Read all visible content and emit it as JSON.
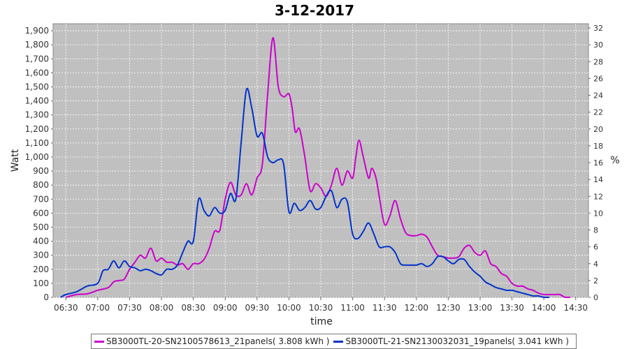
{
  "chart_data": {
    "type": "line",
    "title": "3-12-2017",
    "xlabel": "time",
    "ylabel": "Watt",
    "y2label": "%",
    "ylim": [
      0,
      1950
    ],
    "y2lim": [
      0,
      32.5
    ],
    "xlim": [
      "06:18",
      "14:42"
    ],
    "grid": true,
    "legend_position": "bottom",
    "y_ticks": [
      0,
      100,
      200,
      300,
      400,
      500,
      600,
      700,
      800,
      900,
      1000,
      1100,
      1200,
      1300,
      1400,
      1500,
      1600,
      1700,
      1800,
      1900
    ],
    "y_tick_labels": [
      "0",
      "100",
      "200",
      "300",
      "400",
      "500",
      "600",
      "700",
      "800",
      "900",
      "1,000",
      "1,100",
      "1,200",
      "1,300",
      "1,400",
      "1,500",
      "1,600",
      "1,700",
      "1,800",
      "1,900"
    ],
    "y2_ticks": [
      0,
      2,
      4,
      6,
      8,
      10,
      12,
      14,
      16,
      18,
      20,
      22,
      24,
      26,
      28,
      30,
      32
    ],
    "x_tick_labels": [
      "06:30",
      "07:00",
      "07:30",
      "08:00",
      "08:30",
      "09:00",
      "09:30",
      "10:00",
      "10:30",
      "11:00",
      "11:30",
      "12:00",
      "12:30",
      "13:00",
      "13:30",
      "14:00",
      "14:30"
    ],
    "colors": {
      "plot_bg": "#c0c0c0",
      "grid": "#ffffff"
    },
    "series": [
      {
        "name": "SB3000TL-20-SN2100578613_21panels( 3.808 kWh )",
        "color": "#cc00cc",
        "x": [
          "06:30",
          "06:40",
          "06:50",
          "07:00",
          "07:10",
          "07:15",
          "07:20",
          "07:25",
          "07:30",
          "07:35",
          "07:40",
          "07:45",
          "07:50",
          "07:55",
          "08:00",
          "08:05",
          "08:10",
          "08:15",
          "08:20",
          "08:25",
          "08:30",
          "08:35",
          "08:40",
          "08:45",
          "08:50",
          "08:55",
          "09:00",
          "09:05",
          "09:10",
          "09:15",
          "09:20",
          "09:25",
          "09:30",
          "09:35",
          "09:40",
          "09:45",
          "09:50",
          "09:55",
          "10:00",
          "10:03",
          "10:06",
          "10:10",
          "10:15",
          "10:20",
          "10:25",
          "10:30",
          "10:35",
          "10:40",
          "10:45",
          "10:50",
          "10:55",
          "11:00",
          "11:03",
          "11:06",
          "11:10",
          "11:15",
          "11:18",
          "11:22",
          "11:25",
          "11:30",
          "11:35",
          "11:40",
          "11:45",
          "11:50",
          "11:55",
          "12:00",
          "12:05",
          "12:10",
          "12:15",
          "12:20",
          "12:25",
          "12:30",
          "12:35",
          "12:40",
          "12:45",
          "12:50",
          "12:55",
          "13:00",
          "13:05",
          "13:10",
          "13:15",
          "13:20",
          "13:25",
          "13:30",
          "13:35",
          "13:40",
          "13:45",
          "13:50",
          "13:55",
          "14:00",
          "14:05",
          "14:10",
          "14:15",
          "14:20",
          "14:25",
          "14:30",
          "14:35"
        ],
        "values": [
          0,
          20,
          25,
          50,
          70,
          110,
          120,
          130,
          200,
          250,
          300,
          280,
          350,
          260,
          280,
          250,
          250,
          230,
          240,
          200,
          240,
          240,
          270,
          350,
          470,
          480,
          700,
          820,
          730,
          730,
          810,
          730,
          850,
          950,
          1450,
          1850,
          1500,
          1430,
          1450,
          1350,
          1180,
          1200,
          1000,
          760,
          810,
          780,
          720,
          800,
          920,
          800,
          900,
          850,
          1000,
          1120,
          1000,
          850,
          920,
          850,
          720,
          520,
          580,
          690,
          560,
          460,
          440,
          440,
          450,
          430,
          360,
          300,
          290,
          280,
          280,
          290,
          350,
          370,
          320,
          300,
          330,
          240,
          220,
          170,
          150,
          100,
          80,
          80,
          60,
          50,
          30,
          20,
          20,
          20,
          20,
          0,
          0,
          null,
          null
        ]
      },
      {
        "name": "SB3000TL-21-SN2130032031_19panels( 3.041 kWh )",
        "color": "#0033cc",
        "x": [
          "06:25",
          "06:30",
          "06:40",
          "06:50",
          "07:00",
          "07:05",
          "07:10",
          "07:15",
          "07:20",
          "07:25",
          "07:30",
          "07:35",
          "07:40",
          "07:45",
          "07:50",
          "07:55",
          "08:00",
          "08:05",
          "08:10",
          "08:15",
          "08:20",
          "08:25",
          "08:30",
          "08:35",
          "08:40",
          "08:45",
          "08:50",
          "08:55",
          "09:00",
          "09:05",
          "09:10",
          "09:15",
          "09:20",
          "09:25",
          "09:30",
          "09:35",
          "09:40",
          "09:45",
          "09:50",
          "09:55",
          "10:00",
          "10:05",
          "10:10",
          "10:15",
          "10:20",
          "10:25",
          "10:30",
          "10:35",
          "10:40",
          "10:45",
          "10:50",
          "10:55",
          "11:00",
          "11:05",
          "11:10",
          "11:15",
          "11:20",
          "11:25",
          "11:30",
          "11:35",
          "11:40",
          "11:45",
          "11:50",
          "11:55",
          "12:00",
          "12:05",
          "12:10",
          "12:15",
          "12:20",
          "12:25",
          "12:30",
          "12:35",
          "12:40",
          "12:45",
          "12:50",
          "12:55",
          "13:00",
          "13:05",
          "13:10",
          "13:15",
          "13:20",
          "13:25",
          "13:30",
          "13:35",
          "13:40",
          "13:45",
          "13:50",
          "13:55",
          "14:00",
          "14:05"
        ],
        "values": [
          0,
          20,
          40,
          80,
          100,
          190,
          200,
          260,
          210,
          260,
          220,
          210,
          190,
          200,
          190,
          170,
          160,
          200,
          200,
          230,
          320,
          400,
          400,
          700,
          620,
          580,
          640,
          600,
          620,
          740,
          700,
          1100,
          1480,
          1350,
          1150,
          1170,
          1000,
          960,
          980,
          950,
          610,
          670,
          620,
          640,
          690,
          630,
          640,
          720,
          760,
          640,
          700,
          680,
          450,
          420,
          470,
          530,
          450,
          360,
          360,
          360,
          320,
          240,
          230,
          230,
          230,
          240,
          220,
          240,
          290,
          290,
          260,
          240,
          270,
          270,
          220,
          180,
          150,
          110,
          90,
          70,
          60,
          50,
          50,
          40,
          30,
          20,
          10,
          10,
          0,
          0
        ]
      }
    ]
  },
  "legend": [
    {
      "label": "SB3000TL-20-SN2100578613_21panels( 3.808 kWh )",
      "color": "#cc00cc"
    },
    {
      "label": "SB3000TL-21-SN2130032031_19panels( 3.041 kWh )",
      "color": "#0033cc"
    }
  ]
}
